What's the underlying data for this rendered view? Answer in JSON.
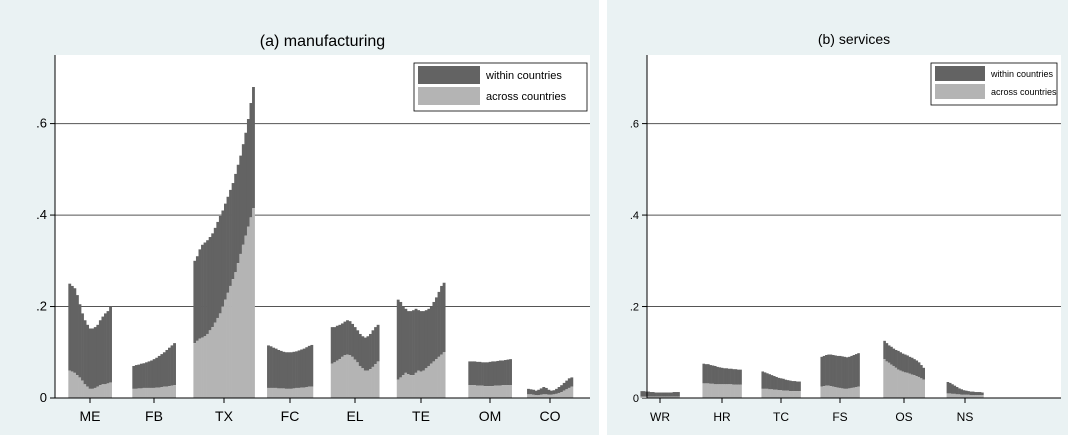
{
  "chart_data": [
    {
      "type": "bar",
      "title": "(a) manufacturing",
      "xlabel": "",
      "ylabel": "",
      "ylim": [
        0,
        0.75
      ],
      "yticks": [
        0,
        0.2,
        0.4,
        0.6
      ],
      "ytick_labels": [
        "0",
        ".2",
        ".4",
        ".6"
      ],
      "grid": true,
      "legend_placement": "top-right",
      "stacked": true,
      "colors": {
        "within countries": "#636363",
        "across countries": "#b4b4b4"
      },
      "series": [
        {
          "name": "within countries"
        },
        {
          "name": "across countries"
        }
      ],
      "groups": [
        {
          "label": "ME",
          "total": [
            0.25,
            0.245,
            0.24,
            0.225,
            0.205,
            0.185,
            0.17,
            0.16,
            0.152,
            0.152,
            0.155,
            0.16,
            0.17,
            0.178,
            0.185,
            0.19,
            0.2
          ],
          "across": [
            0.06,
            0.058,
            0.055,
            0.05,
            0.045,
            0.038,
            0.03,
            0.025,
            0.02,
            0.02,
            0.022,
            0.025,
            0.028,
            0.03,
            0.03,
            0.032,
            0.034
          ]
        },
        {
          "label": "FB",
          "total": [
            0.07,
            0.072,
            0.073,
            0.075,
            0.076,
            0.078,
            0.08,
            0.082,
            0.085,
            0.088,
            0.092,
            0.096,
            0.1,
            0.105,
            0.11,
            0.115,
            0.12
          ],
          "across": [
            0.02,
            0.02,
            0.021,
            0.021,
            0.022,
            0.022,
            0.022,
            0.022,
            0.022,
            0.023,
            0.023,
            0.024,
            0.025,
            0.025,
            0.026,
            0.027,
            0.028
          ]
        },
        {
          "label": "TX",
          "total": [
            0.3,
            0.31,
            0.325,
            0.335,
            0.34,
            0.345,
            0.352,
            0.36,
            0.372,
            0.385,
            0.398,
            0.41,
            0.425,
            0.44,
            0.455,
            0.47,
            0.49,
            0.51,
            0.53,
            0.555,
            0.58,
            0.61,
            0.645,
            0.68
          ],
          "across": [
            0.12,
            0.125,
            0.13,
            0.132,
            0.135,
            0.14,
            0.148,
            0.155,
            0.165,
            0.175,
            0.185,
            0.2,
            0.215,
            0.23,
            0.245,
            0.26,
            0.275,
            0.295,
            0.315,
            0.335,
            0.355,
            0.375,
            0.395,
            0.415
          ]
        },
        {
          "label": "FC",
          "total": [
            0.115,
            0.113,
            0.11,
            0.108,
            0.105,
            0.103,
            0.101,
            0.1,
            0.1,
            0.1,
            0.101,
            0.102,
            0.104,
            0.106,
            0.108,
            0.111,
            0.114,
            0.116
          ],
          "across": [
            0.022,
            0.022,
            0.022,
            0.022,
            0.021,
            0.021,
            0.021,
            0.02,
            0.02,
            0.02,
            0.021,
            0.022,
            0.022,
            0.023,
            0.023,
            0.024,
            0.025,
            0.025
          ]
        },
        {
          "label": "EL",
          "total": [
            0.155,
            0.155,
            0.158,
            0.16,
            0.163,
            0.167,
            0.17,
            0.168,
            0.162,
            0.155,
            0.148,
            0.14,
            0.135,
            0.132,
            0.135,
            0.14,
            0.148,
            0.155,
            0.16
          ],
          "across": [
            0.075,
            0.078,
            0.082,
            0.085,
            0.09,
            0.094,
            0.095,
            0.094,
            0.09,
            0.084,
            0.078,
            0.07,
            0.065,
            0.06,
            0.06,
            0.063,
            0.068,
            0.074,
            0.08
          ]
        },
        {
          "label": "TE",
          "total": [
            0.215,
            0.21,
            0.2,
            0.195,
            0.19,
            0.19,
            0.192,
            0.195,
            0.192,
            0.19,
            0.19,
            0.192,
            0.195,
            0.2,
            0.21,
            0.22,
            0.232,
            0.245,
            0.252
          ],
          "across": [
            0.04,
            0.045,
            0.05,
            0.055,
            0.052,
            0.05,
            0.05,
            0.055,
            0.06,
            0.058,
            0.06,
            0.065,
            0.07,
            0.075,
            0.08,
            0.085,
            0.09,
            0.095,
            0.1
          ]
        },
        {
          "label": "OM",
          "total": [
            0.08,
            0.08,
            0.08,
            0.079,
            0.079,
            0.078,
            0.078,
            0.078,
            0.079,
            0.08,
            0.08,
            0.081,
            0.082,
            0.082,
            0.083,
            0.084,
            0.085
          ],
          "across": [
            0.028,
            0.028,
            0.028,
            0.027,
            0.027,
            0.027,
            0.026,
            0.026,
            0.026,
            0.026,
            0.027,
            0.027,
            0.027,
            0.028,
            0.028,
            0.028,
            0.028
          ]
        },
        {
          "label": "CO",
          "total": [
            0.02,
            0.019,
            0.018,
            0.016,
            0.018,
            0.021,
            0.024,
            0.022,
            0.018,
            0.016,
            0.017,
            0.02,
            0.024,
            0.028,
            0.033,
            0.038,
            0.043,
            0.045
          ],
          "across": [
            0.008,
            0.008,
            0.007,
            0.006,
            0.006,
            0.007,
            0.008,
            0.008,
            0.007,
            0.007,
            0.008,
            0.009,
            0.011,
            0.013,
            0.016,
            0.019,
            0.022,
            0.025
          ]
        }
      ]
    },
    {
      "type": "bar",
      "title": "(b) services",
      "xlabel": "",
      "ylabel": "",
      "ylim": [
        0,
        0.75
      ],
      "yticks": [
        0,
        0.2,
        0.4,
        0.6
      ],
      "ytick_labels": [
        "0",
        ".2",
        ".4",
        ".6"
      ],
      "grid": true,
      "legend_placement": "top-right",
      "stacked": true,
      "colors": {
        "within countries": "#636363",
        "across countries": "#b4b4b4"
      },
      "series": [
        {
          "name": "within countries"
        },
        {
          "name": "across countries"
        }
      ],
      "groups": [
        {
          "label": "WR",
          "total": [
            0.015,
            0.015,
            0.014,
            0.014,
            0.013,
            0.013,
            0.012,
            0.012,
            0.012,
            0.012,
            0.012,
            0.012,
            0.012,
            0.012,
            0.013,
            0.013,
            0.013
          ],
          "across": [
            0.003,
            0.003,
            0.003,
            0.003,
            0.003,
            0.003,
            0.003,
            0.003,
            0.003,
            0.003,
            0.003,
            0.003,
            0.003,
            0.003,
            0.003,
            0.003,
            0.003
          ]
        },
        {
          "label": "HR",
          "total": [
            0.075,
            0.074,
            0.074,
            0.072,
            0.071,
            0.07,
            0.068,
            0.067,
            0.066,
            0.065,
            0.065,
            0.064,
            0.064,
            0.063,
            0.063,
            0.062,
            0.062
          ],
          "across": [
            0.032,
            0.032,
            0.032,
            0.031,
            0.031,
            0.03,
            0.03,
            0.03,
            0.03,
            0.03,
            0.03,
            0.03,
            0.03,
            0.029,
            0.029,
            0.029,
            0.029
          ]
        },
        {
          "label": "TC",
          "total": [
            0.058,
            0.056,
            0.054,
            0.052,
            0.05,
            0.048,
            0.046,
            0.044,
            0.043,
            0.042,
            0.04,
            0.039,
            0.038,
            0.037,
            0.037,
            0.036,
            0.036
          ],
          "across": [
            0.02,
            0.02,
            0.02,
            0.019,
            0.019,
            0.018,
            0.018,
            0.017,
            0.017,
            0.016,
            0.016,
            0.016,
            0.015,
            0.015,
            0.015,
            0.015,
            0.015
          ]
        },
        {
          "label": "FS",
          "total": [
            0.09,
            0.092,
            0.094,
            0.095,
            0.095,
            0.094,
            0.093,
            0.092,
            0.092,
            0.091,
            0.09,
            0.089,
            0.09,
            0.092,
            0.094,
            0.096,
            0.098
          ],
          "across": [
            0.025,
            0.026,
            0.027,
            0.027,
            0.026,
            0.025,
            0.024,
            0.023,
            0.022,
            0.021,
            0.02,
            0.02,
            0.021,
            0.022,
            0.023,
            0.024,
            0.025
          ]
        },
        {
          "label": "OS",
          "total": [
            0.125,
            0.12,
            0.115,
            0.112,
            0.108,
            0.105,
            0.103,
            0.1,
            0.097,
            0.095,
            0.093,
            0.09,
            0.088,
            0.085,
            0.082,
            0.078,
            0.072,
            0.066
          ],
          "across": [
            0.085,
            0.08,
            0.077,
            0.073,
            0.07,
            0.066,
            0.062,
            0.06,
            0.058,
            0.056,
            0.055,
            0.053,
            0.051,
            0.05,
            0.048,
            0.046,
            0.043,
            0.04
          ]
        },
        {
          "label": "NS",
          "total": [
            0.035,
            0.033,
            0.03,
            0.027,
            0.024,
            0.021,
            0.019,
            0.017,
            0.016,
            0.015,
            0.014,
            0.014,
            0.013,
            0.013,
            0.013,
            0.012
          ],
          "across": [
            0.01,
            0.01,
            0.009,
            0.009,
            0.008,
            0.008,
            0.007,
            0.007,
            0.007,
            0.007,
            0.006,
            0.006,
            0.006,
            0.006,
            0.006,
            0.006
          ]
        }
      ]
    }
  ]
}
